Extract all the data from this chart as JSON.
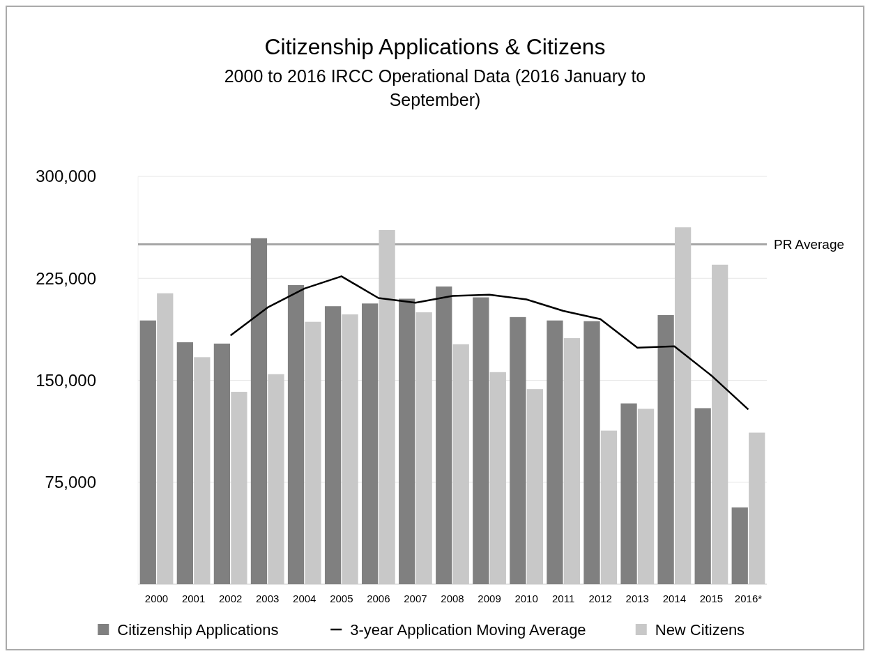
{
  "chart_data": {
    "type": "bar",
    "title": "Citizenship Applications & Citizens",
    "subtitle": "2000 to 2016 IRCC Operational Data (2016 January to September)",
    "categories": [
      "2000",
      "2001",
      "2002",
      "2003",
      "2004",
      "2005",
      "2006",
      "2007",
      "2008",
      "2009",
      "2010",
      "2011",
      "2012",
      "2013",
      "2014",
      "2015",
      "2016*"
    ],
    "series": [
      {
        "name": "Citizenship Applications",
        "color": "#808080",
        "values": [
          194000,
          178000,
          177000,
          254500,
          220000,
          204500,
          206500,
          210000,
          219000,
          211000,
          196500,
          194000,
          193500,
          133000,
          198000,
          129500,
          56500
        ]
      },
      {
        "name": "3-year Application Moving Average",
        "type": "line",
        "color": "#000000",
        "values": [
          null,
          null,
          183000,
          203500,
          217500,
          226500,
          210500,
          207000,
          212000,
          213000,
          209500,
          201000,
          195000,
          174000,
          175000,
          153500,
          128500
        ]
      },
      {
        "name": "New Citizens",
        "color": "#c8c8c8",
        "values": [
          214000,
          167000,
          141500,
          154500,
          193000,
          198500,
          260500,
          200000,
          176500,
          156000,
          143500,
          181000,
          113000,
          129000,
          262500,
          235000,
          111500
        ]
      }
    ],
    "ylim": [
      0,
      300000
    ],
    "yticks": [
      {
        "value": 75000,
        "label": "75,000"
      },
      {
        "value": 150000,
        "label": "150,000"
      },
      {
        "value": 225000,
        "label": "225,000"
      },
      {
        "value": 300000,
        "label": "300,000"
      }
    ],
    "ref_lines": [
      {
        "axis": "y",
        "value": 250000,
        "label": "PR Average",
        "color": "#a6a6a6"
      }
    ],
    "grid": "y",
    "legend": "bottom",
    "marker": "none",
    "line_style": "solid"
  }
}
